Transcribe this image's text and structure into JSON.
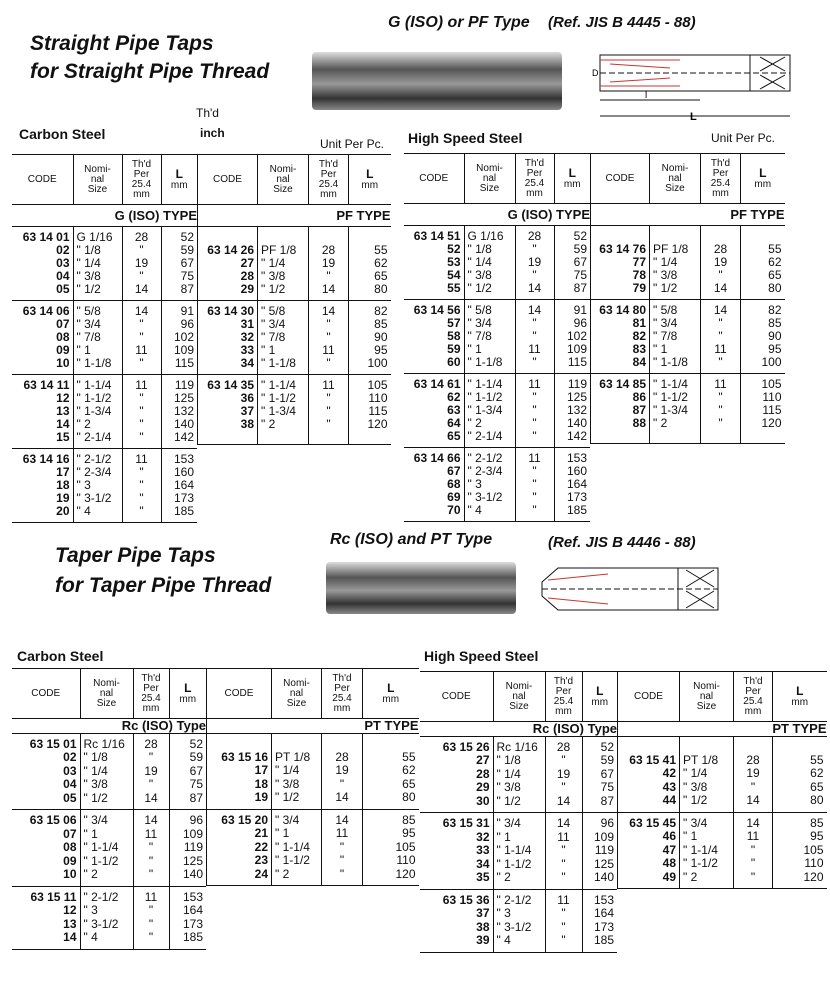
{
  "header_labels": {
    "code": "CODE",
    "size": "Nomi-\nnal\nSize",
    "tpi": "Th'd\nPer\n25.4\nmm",
    "L": "L",
    "mm": "mm"
  },
  "top": {
    "title1": "Straight Pipe Taps",
    "title2": "for Straight Pipe Thread",
    "subtitle": "G (ISO) or PF Type",
    "ref": "(Ref. JIS B 4445 - 88)",
    "thd": "Th'd",
    "inch": "inch",
    "diagram_labels": [
      "D",
      "l",
      "L"
    ],
    "tables": [
      {
        "label": "Carbon Steel",
        "unit": "Unit Per Pc.",
        "halves": [
          {
            "type": "G (ISO) TYPE",
            "groups": [
              [
                [
                  "63 14 01",
                  "G 1/16",
                  "28",
                  "52"
                ],
                [
                  "02",
                  "\" 1/8",
                  "\"",
                  "59"
                ],
                [
                  "03",
                  "\" 1/4",
                  "19",
                  "67"
                ],
                [
                  "04",
                  "\" 3/8",
                  "\"",
                  "75"
                ],
                [
                  "05",
                  "\" 1/2",
                  "14",
                  "87"
                ]
              ],
              [
                [
                  "63 14 06",
                  "\" 5/8",
                  "14",
                  "91"
                ],
                [
                  "07",
                  "\" 3/4",
                  "\"",
                  "96"
                ],
                [
                  "08",
                  "\" 7/8",
                  "\"",
                  "102"
                ],
                [
                  "09",
                  "\" 1",
                  "11",
                  "109"
                ],
                [
                  "10",
                  "\" 1-1/8",
                  "\"",
                  "115"
                ]
              ],
              [
                [
                  "63 14 11",
                  "\" 1-1/4",
                  "11",
                  "119"
                ],
                [
                  "12",
                  "\" 1-1/2",
                  "\"",
                  "125"
                ],
                [
                  "13",
                  "\" 1-3/4",
                  "\"",
                  "132"
                ],
                [
                  "14",
                  "\" 2",
                  "\"",
                  "140"
                ],
                [
                  "15",
                  "\" 2-1/4",
                  "\"",
                  "142"
                ]
              ],
              [
                [
                  "63 14 16",
                  "\" 2-1/2",
                  "11",
                  "153"
                ],
                [
                  "17",
                  "\" 2-3/4",
                  "\"",
                  "160"
                ],
                [
                  "18",
                  "\" 3",
                  "\"",
                  "164"
                ],
                [
                  "19",
                  "\" 3-1/2",
                  "\"",
                  "173"
                ],
                [
                  "20",
                  "\" 4",
                  "\"",
                  "185"
                ]
              ]
            ]
          },
          {
            "type": "PF TYPE",
            "groups": [
              [
                [
                  "63 14 26",
                  "PF 1/8",
                  "28",
                  "55"
                ],
                [
                  "27",
                  "\" 1/4",
                  "19",
                  "62"
                ],
                [
                  "28",
                  "\" 3/8",
                  "\"",
                  "65"
                ],
                [
                  "29",
                  "\" 1/2",
                  "14",
                  "80"
                ]
              ],
              [
                [
                  "63 14 30",
                  "\" 5/8",
                  "14",
                  "82"
                ],
                [
                  "31",
                  "\" 3/4",
                  "\"",
                  "85"
                ],
                [
                  "32",
                  "\" 7/8",
                  "\"",
                  "90"
                ],
                [
                  "33",
                  "\" 1",
                  "11",
                  "95"
                ],
                [
                  "34",
                  "\" 1-1/8",
                  "\"",
                  "100"
                ]
              ],
              [
                [
                  "63 14 35",
                  "\" 1-1/4",
                  "11",
                  "105"
                ],
                [
                  "36",
                  "\" 1-1/2",
                  "\"",
                  "110"
                ],
                [
                  "37",
                  "\" 1-3/4",
                  "\"",
                  "115"
                ],
                [
                  "38",
                  "\" 2",
                  "\"",
                  "120"
                ],
                [
                  "",
                  "",
                  "",
                  ""
                ]
              ]
            ]
          }
        ]
      },
      {
        "label": "High Speed Steel",
        "unit": "Unit Per Pc.",
        "halves": [
          {
            "type": "G (ISO) TYPE",
            "groups": [
              [
                [
                  "63 14 51",
                  "G 1/16",
                  "28",
                  "52"
                ],
                [
                  "52",
                  "\" 1/8",
                  "\"",
                  "59"
                ],
                [
                  "53",
                  "\" 1/4",
                  "19",
                  "67"
                ],
                [
                  "54",
                  "\" 3/8",
                  "\"",
                  "75"
                ],
                [
                  "55",
                  "\" 1/2",
                  "14",
                  "87"
                ]
              ],
              [
                [
                  "63 14 56",
                  "\" 5/8",
                  "14",
                  "91"
                ],
                [
                  "57",
                  "\" 3/4",
                  "\"",
                  "96"
                ],
                [
                  "58",
                  "\" 7/8",
                  "\"",
                  "102"
                ],
                [
                  "59",
                  "\" 1",
                  "11",
                  "109"
                ],
                [
                  "60",
                  "\" 1-1/8",
                  "\"",
                  "115"
                ]
              ],
              [
                [
                  "63 14 61",
                  "\" 1-1/4",
                  "11",
                  "119"
                ],
                [
                  "62",
                  "\" 1-1/2",
                  "\"",
                  "125"
                ],
                [
                  "63",
                  "\" 1-3/4",
                  "\"",
                  "132"
                ],
                [
                  "64",
                  "\" 2",
                  "\"",
                  "140"
                ],
                [
                  "65",
                  "\" 2-1/4",
                  "\"",
                  "142"
                ]
              ],
              [
                [
                  "63 14 66",
                  "\" 2-1/2",
                  "11",
                  "153"
                ],
                [
                  "67",
                  "\" 2-3/4",
                  "\"",
                  "160"
                ],
                [
                  "68",
                  "\" 3",
                  "\"",
                  "164"
                ],
                [
                  "69",
                  "\" 3-1/2",
                  "\"",
                  "173"
                ],
                [
                  "70",
                  "\" 4",
                  "\"",
                  "185"
                ]
              ]
            ]
          },
          {
            "type": "PF TYPE",
            "groups": [
              [
                [
                  "63 14 76",
                  "PF 1/8",
                  "28",
                  "55"
                ],
                [
                  "77",
                  "\" 1/4",
                  "19",
                  "62"
                ],
                [
                  "78",
                  "\" 3/8",
                  "\"",
                  "65"
                ],
                [
                  "79",
                  "\" 1/2",
                  "14",
                  "80"
                ]
              ],
              [
                [
                  "63 14 80",
                  "\" 5/8",
                  "14",
                  "82"
                ],
                [
                  "81",
                  "\" 3/4",
                  "\"",
                  "85"
                ],
                [
                  "82",
                  "\" 7/8",
                  "\"",
                  "90"
                ],
                [
                  "83",
                  "\" 1",
                  "11",
                  "95"
                ],
                [
                  "84",
                  "\" 1-1/8",
                  "\"",
                  "100"
                ]
              ],
              [
                [
                  "63 14 85",
                  "\" 1-1/4",
                  "11",
                  "105"
                ],
                [
                  "86",
                  "\" 1-1/2",
                  "\"",
                  "110"
                ],
                [
                  "87",
                  "\" 1-3/4",
                  "\"",
                  "115"
                ],
                [
                  "88",
                  "\" 2",
                  "\"",
                  "120"
                ],
                [
                  "",
                  "",
                  "",
                  ""
                ]
              ]
            ]
          }
        ]
      }
    ]
  },
  "bottom": {
    "title1": "Taper Pipe Taps",
    "title2": "for Taper Pipe Thread",
    "subtitle": "Rc (ISO) and PT Type",
    "ref": "(Ref. JIS B 4446 - 88)",
    "tables": [
      {
        "label": "Carbon Steel",
        "halves": [
          {
            "type": "Rc (ISO) Type",
            "groups": [
              [
                [
                  "63 15 01",
                  "Rc 1/16",
                  "28",
                  "52"
                ],
                [
                  "02",
                  "\" 1/8",
                  "\"",
                  "59"
                ],
                [
                  "03",
                  "\" 1/4",
                  "19",
                  "67"
                ],
                [
                  "04",
                  "\" 3/8",
                  "\"",
                  "75"
                ],
                [
                  "05",
                  "\" 1/2",
                  "14",
                  "87"
                ]
              ],
              [
                [
                  "63 15 06",
                  "\" 3/4",
                  "14",
                  "96"
                ],
                [
                  "07",
                  "\" 1",
                  "11",
                  "109"
                ],
                [
                  "08",
                  "\" 1-1/4",
                  "\"",
                  "119"
                ],
                [
                  "09",
                  "\" 1-1/2",
                  "\"",
                  "125"
                ],
                [
                  "10",
                  "\" 2",
                  "\"",
                  "140"
                ]
              ],
              [
                [
                  "63 15 11",
                  "\" 2-1/2",
                  "11",
                  "153"
                ],
                [
                  "12",
                  "\" 3",
                  "\"",
                  "164"
                ],
                [
                  "13",
                  "\" 3-1/2",
                  "\"",
                  "173"
                ],
                [
                  "14",
                  "\" 4",
                  "\"",
                  "185"
                ]
              ]
            ]
          },
          {
            "type": "PT TYPE",
            "groups": [
              [
                [
                  "63 15 16",
                  "PT 1/8",
                  "28",
                  "55"
                ],
                [
                  "17",
                  "\" 1/4",
                  "19",
                  "62"
                ],
                [
                  "18",
                  "\" 3/8",
                  "\"",
                  "65"
                ],
                [
                  "19",
                  "\" 1/2",
                  "14",
                  "80"
                ]
              ],
              [
                [
                  "63 15 20",
                  "\" 3/4",
                  "14",
                  "85"
                ],
                [
                  "21",
                  "\" 1",
                  "11",
                  "95"
                ],
                [
                  "22",
                  "\" 1-1/4",
                  "\"",
                  "105"
                ],
                [
                  "23",
                  "\" 1-1/2",
                  "\"",
                  "110"
                ],
                [
                  "24",
                  "\" 2",
                  "\"",
                  "120"
                ]
              ]
            ]
          }
        ]
      },
      {
        "label": "High Speed Steel",
        "halves": [
          {
            "type": "Rc (ISO) Type",
            "groups": [
              [
                [
                  "63 15 26",
                  "Rc 1/16",
                  "28",
                  "52"
                ],
                [
                  "27",
                  "\" 1/8",
                  "\"",
                  "59"
                ],
                [
                  "28",
                  "\" 1/4",
                  "19",
                  "67"
                ],
                [
                  "29",
                  "\" 3/8",
                  "\"",
                  "75"
                ],
                [
                  "30",
                  "\" 1/2",
                  "14",
                  "87"
                ]
              ],
              [
                [
                  "63 15 31",
                  "\" 3/4",
                  "14",
                  "96"
                ],
                [
                  "32",
                  "\" 1",
                  "11",
                  "109"
                ],
                [
                  "33",
                  "\" 1-1/4",
                  "\"",
                  "119"
                ],
                [
                  "34",
                  "\" 1-1/2",
                  "\"",
                  "125"
                ],
                [
                  "35",
                  "\" 2",
                  "\"",
                  "140"
                ]
              ],
              [
                [
                  "63 15 36",
                  "\" 2-1/2",
                  "11",
                  "153"
                ],
                [
                  "37",
                  "\" 3",
                  "\"",
                  "164"
                ],
                [
                  "38",
                  "\" 3-1/2",
                  "\"",
                  "173"
                ],
                [
                  "39",
                  "\" 4",
                  "\"",
                  "185"
                ]
              ]
            ]
          },
          {
            "type": "PT TYPE",
            "groups": [
              [
                [
                  "63 15 41",
                  "PT 1/8",
                  "28",
                  "55"
                ],
                [
                  "42",
                  "\" 1/4",
                  "19",
                  "62"
                ],
                [
                  "43",
                  "\" 3/8",
                  "\"",
                  "65"
                ],
                [
                  "44",
                  "\" 1/2",
                  "14",
                  "80"
                ]
              ],
              [
                [
                  "63 15 45",
                  "\" 3/4",
                  "14",
                  "85"
                ],
                [
                  "46",
                  "\" 1",
                  "11",
                  "95"
                ],
                [
                  "47",
                  "\" 1-1/4",
                  "\"",
                  "105"
                ],
                [
                  "48",
                  "\" 1-1/2",
                  "\"",
                  "110"
                ],
                [
                  "49",
                  "\" 2",
                  "\"",
                  "120"
                ]
              ]
            ]
          }
        ]
      }
    ]
  }
}
